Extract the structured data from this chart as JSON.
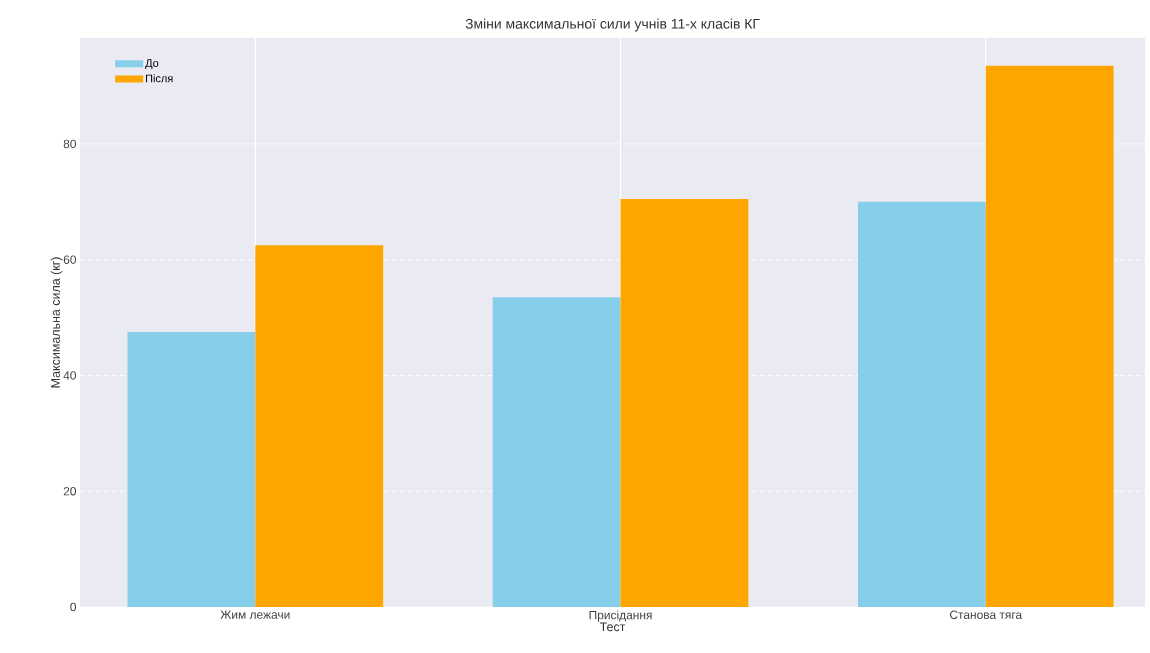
{
  "chart_data": {
    "type": "bar",
    "title": "Зміни максимальної сили учнів 11-х класів КГ",
    "xlabel": "Тест",
    "ylabel": "Максимальна сила (кг)",
    "categories": [
      "Жим лежачи",
      "Присідання",
      "Станова тяга"
    ],
    "series": [
      {
        "name": "До",
        "color": "#87ceeb",
        "values": [
          47.5,
          53.5,
          70
        ]
      },
      {
        "name": "Після",
        "color": "#ffa500",
        "values": [
          62.5,
          70.5,
          93.5
        ]
      }
    ],
    "ylim": [
      0,
      98.3
    ],
    "yticks": [
      0,
      20,
      40,
      60,
      80
    ],
    "grid": true,
    "legend": "top left"
  }
}
